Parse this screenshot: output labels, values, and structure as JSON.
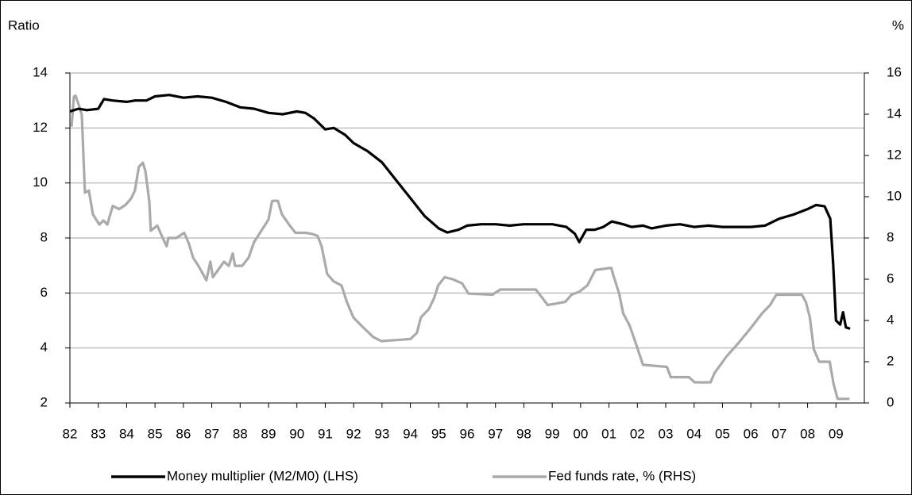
{
  "chart_data": {
    "type": "line",
    "y_label": "Ratio",
    "y2_label": "%",
    "xlim": [
      1982,
      2010
    ],
    "xticks": [
      {
        "value": 1982,
        "label": "82"
      },
      {
        "value": 1983,
        "label": "83"
      },
      {
        "value": 1984,
        "label": "84"
      },
      {
        "value": 1985,
        "label": "85"
      },
      {
        "value": 1986,
        "label": "86"
      },
      {
        "value": 1987,
        "label": "87"
      },
      {
        "value": 1988,
        "label": "88"
      },
      {
        "value": 1989,
        "label": "89"
      },
      {
        "value": 1990,
        "label": "90"
      },
      {
        "value": 1991,
        "label": "91"
      },
      {
        "value": 1992,
        "label": "92"
      },
      {
        "value": 1993,
        "label": "93"
      },
      {
        "value": 1994,
        "label": "94"
      },
      {
        "value": 1995,
        "label": "95"
      },
      {
        "value": 1996,
        "label": "96"
      },
      {
        "value": 1997,
        "label": "97"
      },
      {
        "value": 1998,
        "label": "98"
      },
      {
        "value": 1999,
        "label": "99"
      },
      {
        "value": 2000,
        "label": "00"
      },
      {
        "value": 2001,
        "label": "01"
      },
      {
        "value": 2002,
        "label": "02"
      },
      {
        "value": 2003,
        "label": "03"
      },
      {
        "value": 2004,
        "label": "04"
      },
      {
        "value": 2005,
        "label": "05"
      },
      {
        "value": 2006,
        "label": "06"
      },
      {
        "value": 2007,
        "label": "07"
      },
      {
        "value": 2008,
        "label": "08"
      },
      {
        "value": 2009,
        "label": "09"
      }
    ],
    "ylim": [
      2,
      14
    ],
    "yticks": [
      2,
      4,
      6,
      8,
      10,
      12,
      14
    ],
    "y2lim": [
      0,
      16
    ],
    "y2ticks": [
      0,
      2,
      4,
      6,
      8,
      10,
      12,
      14,
      16
    ],
    "grid": true,
    "legend": "bottom",
    "series": [
      {
        "name": "Money multiplier (M2/M0) (LHS)",
        "color": "#000000",
        "axis": "y",
        "x": [
          1982.0,
          1982.3,
          1982.6,
          1983.0,
          1983.2,
          1983.5,
          1984.0,
          1984.3,
          1984.7,
          1985.0,
          1985.5,
          1986.0,
          1986.5,
          1987.0,
          1987.5,
          1988.0,
          1988.5,
          1989.0,
          1989.5,
          1990.0,
          1990.3,
          1990.6,
          1991.0,
          1991.3,
          1991.7,
          1992.0,
          1992.5,
          1993.0,
          1993.5,
          1994.0,
          1994.5,
          1995.0,
          1995.3,
          1995.7,
          1996.0,
          1996.5,
          1997.0,
          1997.5,
          1998.0,
          1998.5,
          1999.0,
          1999.5,
          1999.8,
          1999.95,
          2000.2,
          2000.5,
          2000.8,
          2001.1,
          2001.5,
          2001.8,
          2002.2,
          2002.5,
          2003.0,
          2003.5,
          2004.0,
          2004.5,
          2005.0,
          2006.0,
          2006.5,
          2007.0,
          2007.5,
          2008.0,
          2008.3,
          2008.6,
          2008.8,
          2008.9,
          2009.0,
          2009.15,
          2009.25,
          2009.35,
          2009.5
        ],
        "values": [
          12.6,
          12.7,
          12.65,
          12.7,
          13.05,
          13.0,
          12.95,
          13.0,
          13.0,
          13.15,
          13.2,
          13.1,
          13.15,
          13.1,
          12.95,
          12.75,
          12.7,
          12.55,
          12.5,
          12.6,
          12.55,
          12.35,
          11.95,
          12.0,
          11.75,
          11.45,
          11.15,
          10.75,
          10.1,
          9.45,
          8.8,
          8.35,
          8.2,
          8.3,
          8.45,
          8.5,
          8.5,
          8.45,
          8.5,
          8.5,
          8.5,
          8.4,
          8.15,
          7.85,
          8.3,
          8.3,
          8.4,
          8.6,
          8.5,
          8.4,
          8.45,
          8.35,
          8.45,
          8.5,
          8.4,
          8.45,
          8.4,
          8.4,
          8.45,
          8.7,
          8.85,
          9.05,
          9.2,
          9.15,
          8.7,
          7.1,
          5.0,
          4.85,
          5.3,
          4.75,
          4.7
        ]
      },
      {
        "name": "Fed funds rate, % (RHS)",
        "color": "#aaaaaa",
        "axis": "y2",
        "x": [
          1982.06,
          1982.14,
          1982.2,
          1982.34,
          1982.42,
          1982.53,
          1982.67,
          1982.81,
          1983.04,
          1983.18,
          1983.32,
          1983.51,
          1983.73,
          1983.96,
          1984.15,
          1984.29,
          1984.43,
          1984.57,
          1984.66,
          1984.8,
          1984.85,
          1985.08,
          1985.27,
          1985.41,
          1985.47,
          1985.75,
          1986.03,
          1986.2,
          1986.34,
          1986.53,
          1986.81,
          1986.95,
          1987.04,
          1987.43,
          1987.6,
          1987.74,
          1987.82,
          1988.07,
          1988.3,
          1988.49,
          1988.77,
          1989.0,
          1989.13,
          1989.33,
          1989.47,
          1989.75,
          1989.95,
          1990.31,
          1990.53,
          1990.73,
          1990.87,
          1991.07,
          1991.29,
          1991.57,
          1991.76,
          1991.99,
          1992.27,
          1992.46,
          1992.69,
          1992.97,
          1994.0,
          1994.23,
          1994.37,
          1994.65,
          1994.84,
          1994.98,
          1995.21,
          1995.49,
          1995.82,
          1996.05,
          1996.89,
          1997.17,
          1998.42,
          1998.65,
          1998.84,
          1999.46,
          1999.68,
          1999.96,
          2000.24,
          2000.52,
          2001.08,
          2001.14,
          2001.36,
          2001.5,
          2001.73,
          2001.92,
          2002.2,
          2003.04,
          2003.18,
          2003.82,
          2004.02,
          2004.58,
          2004.72,
          2005.14,
          2005.56,
          2005.98,
          2006.4,
          2006.68,
          2006.9,
          2007.8,
          2007.94,
          2008.08,
          2008.22,
          2008.41,
          2008.78,
          2008.92,
          2009.06,
          2009.48
        ],
        "values": [
          13.4,
          14.85,
          14.9,
          14.35,
          13.95,
          10.2,
          10.3,
          9.15,
          8.65,
          8.85,
          8.65,
          9.55,
          9.4,
          9.6,
          9.9,
          10.3,
          11.45,
          11.65,
          11.25,
          9.75,
          8.35,
          8.6,
          8.0,
          7.6,
          8.0,
          8.0,
          8.25,
          7.7,
          7.05,
          6.65,
          5.95,
          6.85,
          6.1,
          6.85,
          6.65,
          7.25,
          6.65,
          6.65,
          7.05,
          7.8,
          8.4,
          8.9,
          9.8,
          9.8,
          9.15,
          8.6,
          8.25,
          8.25,
          8.2,
          8.1,
          7.6,
          6.25,
          5.9,
          5.7,
          4.9,
          4.15,
          3.75,
          3.5,
          3.2,
          3.0,
          3.1,
          3.4,
          4.15,
          4.55,
          5.1,
          5.7,
          6.1,
          6.0,
          5.8,
          5.3,
          5.25,
          5.5,
          5.5,
          5.1,
          4.75,
          4.9,
          5.25,
          5.4,
          5.7,
          6.45,
          6.55,
          6.25,
          5.3,
          4.35,
          3.75,
          3.0,
          1.85,
          1.75,
          1.25,
          1.25,
          1.0,
          1.0,
          1.45,
          2.25,
          2.9,
          3.6,
          4.35,
          4.75,
          5.25,
          5.25,
          4.9,
          4.15,
          2.6,
          2.0,
          2.0,
          0.9,
          0.2,
          0.2
        ]
      }
    ]
  }
}
